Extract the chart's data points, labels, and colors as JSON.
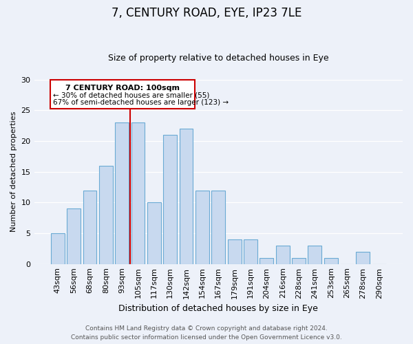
{
  "title": "7, CENTURY ROAD, EYE, IP23 7LE",
  "subtitle": "Size of property relative to detached houses in Eye",
  "xlabel": "Distribution of detached houses by size in Eye",
  "ylabel": "Number of detached properties",
  "footer_line1": "Contains HM Land Registry data © Crown copyright and database right 2024.",
  "footer_line2": "Contains public sector information licensed under the Open Government Licence v3.0.",
  "categories": [
    "43sqm",
    "56sqm",
    "68sqm",
    "80sqm",
    "93sqm",
    "105sqm",
    "117sqm",
    "130sqm",
    "142sqm",
    "154sqm",
    "167sqm",
    "179sqm",
    "191sqm",
    "204sqm",
    "216sqm",
    "228sqm",
    "241sqm",
    "253sqm",
    "265sqm",
    "278sqm",
    "290sqm"
  ],
  "values": [
    5,
    9,
    12,
    16,
    23,
    23,
    10,
    21,
    22,
    12,
    12,
    4,
    4,
    1,
    3,
    1,
    3,
    1,
    0,
    2,
    0
  ],
  "bar_color": "#c8d9ef",
  "bar_edge_color": "#6aaad4",
  "vline_color": "#cc0000",
  "vline_x_index": 4.5,
  "annotation_title": "7 CENTURY ROAD: 100sqm",
  "annotation_line1": "← 30% of detached houses are smaller (55)",
  "annotation_line2": "67% of semi-detached houses are larger (123) →",
  "annotation_box_edge_color": "#cc0000",
  "ylim": [
    0,
    30
  ],
  "yticks": [
    0,
    5,
    10,
    15,
    20,
    25,
    30
  ],
  "background_color": "#edf1f9",
  "plot_background": "#edf1f9",
  "grid_color": "white",
  "title_fontsize": 12,
  "subtitle_fontsize": 9,
  "xlabel_fontsize": 9,
  "ylabel_fontsize": 8,
  "tick_fontsize": 8,
  "footer_fontsize": 6.5
}
